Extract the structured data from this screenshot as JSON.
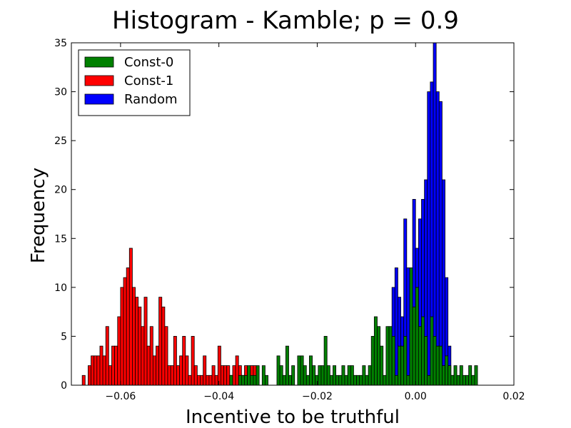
{
  "chart_data": {
    "type": "bar",
    "subtype": "histogram",
    "title": "Histogram - Kamble;  p = 0.9",
    "xlabel": "Incentive to be truthful",
    "ylabel": "Frequency",
    "xlim": [
      -0.07,
      0.02
    ],
    "ylim": [
      0,
      35
    ],
    "xticks": [
      -0.06,
      -0.04,
      -0.02,
      0.0,
      0.02
    ],
    "xtick_labels": [
      "−0.06",
      "−0.04",
      "−0.02",
      "0.00",
      "0.02"
    ],
    "yticks": [
      0,
      5,
      10,
      15,
      20,
      25,
      30,
      35
    ],
    "ytick_labels": [
      "0",
      "5",
      "10",
      "15",
      "20",
      "25",
      "30",
      "35"
    ],
    "grid": false,
    "legend_position": "upper-left",
    "bin_width": 0.0006,
    "series": [
      {
        "name": "Random",
        "color": "#0000ff",
        "x": [
          -0.0048,
          -0.0042,
          -0.0036,
          -0.003,
          -0.0024,
          -0.0018,
          -0.0012,
          -0.0006,
          0.0,
          0.0006,
          0.0012,
          0.0018,
          0.0024,
          0.003,
          0.0036,
          0.0042,
          0.0048,
          0.0054,
          0.006,
          0.0066,
          0.0072
        ],
        "values": [
          10,
          12,
          9,
          7,
          17,
          12,
          10,
          19,
          14,
          17,
          19,
          21,
          30,
          31,
          35,
          30,
          29,
          21,
          11,
          4,
          1
        ]
      },
      {
        "name": "Const-1",
        "color": "#ff0000",
        "x": [
          -0.0678,
          -0.0666,
          -0.066,
          -0.0654,
          -0.0648,
          -0.0642,
          -0.0636,
          -0.063,
          -0.0624,
          -0.0618,
          -0.0612,
          -0.0606,
          -0.06,
          -0.0594,
          -0.0588,
          -0.0582,
          -0.0576,
          -0.057,
          -0.0564,
          -0.0558,
          -0.0552,
          -0.0546,
          -0.054,
          -0.0534,
          -0.0528,
          -0.0522,
          -0.0516,
          -0.051,
          -0.0504,
          -0.0498,
          -0.0492,
          -0.0486,
          -0.048,
          -0.0474,
          -0.0468,
          -0.0462,
          -0.0456,
          -0.045,
          -0.0444,
          -0.0438,
          -0.0432,
          -0.0426,
          -0.042,
          -0.0414,
          -0.0408,
          -0.0402,
          -0.0396,
          -0.039,
          -0.0384,
          -0.0378,
          -0.0372,
          -0.0366,
          -0.036,
          -0.0354,
          -0.0348,
          -0.0342,
          -0.0336,
          -0.033,
          -0.0276
        ],
        "values": [
          1,
          2,
          3,
          3,
          3,
          4,
          3,
          6,
          2,
          4,
          4,
          7,
          10,
          11,
          12,
          14,
          10,
          9,
          8,
          6,
          9,
          4,
          6,
          3,
          4,
          9,
          8,
          6,
          2,
          2,
          5,
          2,
          3,
          5,
          3,
          1,
          5,
          2,
          1,
          1,
          3,
          1,
          1,
          2,
          1,
          4,
          2,
          2,
          2,
          1,
          2,
          3,
          2,
          1,
          2,
          1,
          2,
          2,
          1
        ]
      },
      {
        "name": "Const-0",
        "color": "#008000",
        "x": [
          -0.0378,
          -0.036,
          -0.0354,
          -0.0348,
          -0.0342,
          -0.0336,
          -0.033,
          -0.0324,
          -0.0312,
          -0.0306,
          -0.0282,
          -0.0276,
          -0.027,
          -0.0264,
          -0.0258,
          -0.0252,
          -0.024,
          -0.0234,
          -0.0228,
          -0.0222,
          -0.0216,
          -0.021,
          -0.0204,
          -0.0198,
          -0.0192,
          -0.0186,
          -0.018,
          -0.0174,
          -0.0168,
          -0.0162,
          -0.0156,
          -0.015,
          -0.0144,
          -0.0138,
          -0.0132,
          -0.0126,
          -0.012,
          -0.0114,
          -0.0108,
          -0.0102,
          -0.0096,
          -0.009,
          -0.0084,
          -0.0078,
          -0.0072,
          -0.0066,
          -0.006,
          -0.0054,
          -0.0048,
          -0.0042,
          -0.0036,
          -0.003,
          -0.0024,
          -0.0018,
          -0.0012,
          -0.0006,
          0.0,
          0.0006,
          0.0012,
          0.0018,
          0.0024,
          0.003,
          0.0036,
          0.0042,
          0.0048,
          0.0054,
          0.006,
          0.0066,
          0.0072,
          0.0078,
          0.0084,
          0.009,
          0.0096,
          0.0102,
          0.0108,
          0.0114,
          0.012
        ],
        "values": [
          1,
          1,
          1,
          1,
          2,
          1,
          1,
          2,
          2,
          1,
          3,
          2,
          1,
          4,
          1,
          2,
          3,
          3,
          2,
          1,
          3,
          2,
          1,
          2,
          2,
          5,
          2,
          1,
          2,
          1,
          1,
          2,
          1,
          2,
          2,
          1,
          1,
          1,
          2,
          1,
          2,
          5,
          7,
          6,
          4,
          1,
          6,
          6,
          5,
          1,
          4,
          4,
          5,
          1,
          12,
          8,
          10,
          6,
          7,
          5,
          1,
          7,
          5,
          4,
          4,
          2,
          3,
          2,
          1,
          2,
          1,
          2,
          1,
          1,
          2,
          1,
          2
        ]
      }
    ]
  }
}
